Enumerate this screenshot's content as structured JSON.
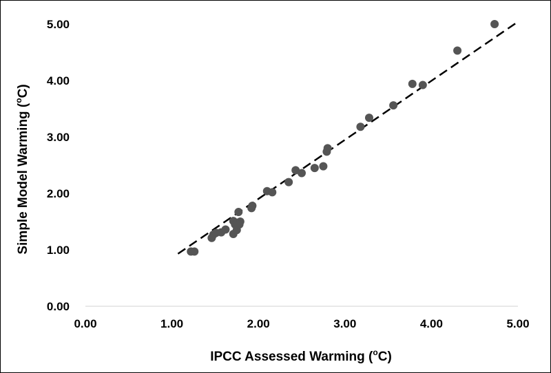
{
  "chart_data": {
    "type": "scatter",
    "title": "",
    "xlabel": "IPCC Assessed Warming (",
    "xlabel_sup": "o",
    "xlabel_suffix": "C)",
    "ylabel": "Simple Model Warming (",
    "ylabel_sup": "o",
    "ylabel_suffix": "C)",
    "xlim": [
      0,
      5
    ],
    "ylim": [
      0,
      5
    ],
    "x_ticks": [
      "0.00",
      "1.00",
      "2.00",
      "3.00",
      "4.00",
      "5.00"
    ],
    "y_ticks": [
      "0.00",
      "1.00",
      "2.00",
      "3.00",
      "4.00",
      "5.00"
    ],
    "grid": false,
    "legend": "none",
    "marker_color": "#555555",
    "trendline": {
      "style": "dashed",
      "color": "#000000",
      "from": {
        "x": 1.07,
        "y": 0.93
      },
      "to": {
        "x": 4.98,
        "y": 5.02
      }
    },
    "points": [
      {
        "x": 1.22,
        "y": 0.97
      },
      {
        "x": 1.26,
        "y": 0.97
      },
      {
        "x": 1.46,
        "y": 1.21
      },
      {
        "x": 1.48,
        "y": 1.27
      },
      {
        "x": 1.51,
        "y": 1.3
      },
      {
        "x": 1.57,
        "y": 1.31
      },
      {
        "x": 1.62,
        "y": 1.36
      },
      {
        "x": 1.71,
        "y": 1.28
      },
      {
        "x": 1.71,
        "y": 1.51
      },
      {
        "x": 1.73,
        "y": 1.45
      },
      {
        "x": 1.75,
        "y": 1.35
      },
      {
        "x": 1.76,
        "y": 1.48
      },
      {
        "x": 1.77,
        "y": 1.67
      },
      {
        "x": 1.79,
        "y": 1.5
      },
      {
        "x": 1.78,
        "y": 1.45
      },
      {
        "x": 1.92,
        "y": 1.74
      },
      {
        "x": 1.93,
        "y": 1.78
      },
      {
        "x": 2.1,
        "y": 2.04
      },
      {
        "x": 2.16,
        "y": 2.02
      },
      {
        "x": 2.35,
        "y": 2.2
      },
      {
        "x": 2.43,
        "y": 2.41
      },
      {
        "x": 2.5,
        "y": 2.36
      },
      {
        "x": 2.65,
        "y": 2.45
      },
      {
        "x": 2.75,
        "y": 2.48
      },
      {
        "x": 2.79,
        "y": 2.74
      },
      {
        "x": 2.8,
        "y": 2.8
      },
      {
        "x": 3.18,
        "y": 3.18
      },
      {
        "x": 3.28,
        "y": 3.34
      },
      {
        "x": 3.56,
        "y": 3.56
      },
      {
        "x": 3.78,
        "y": 3.94
      },
      {
        "x": 3.9,
        "y": 3.92
      },
      {
        "x": 4.3,
        "y": 4.53
      },
      {
        "x": 4.73,
        "y": 5.0
      }
    ]
  }
}
